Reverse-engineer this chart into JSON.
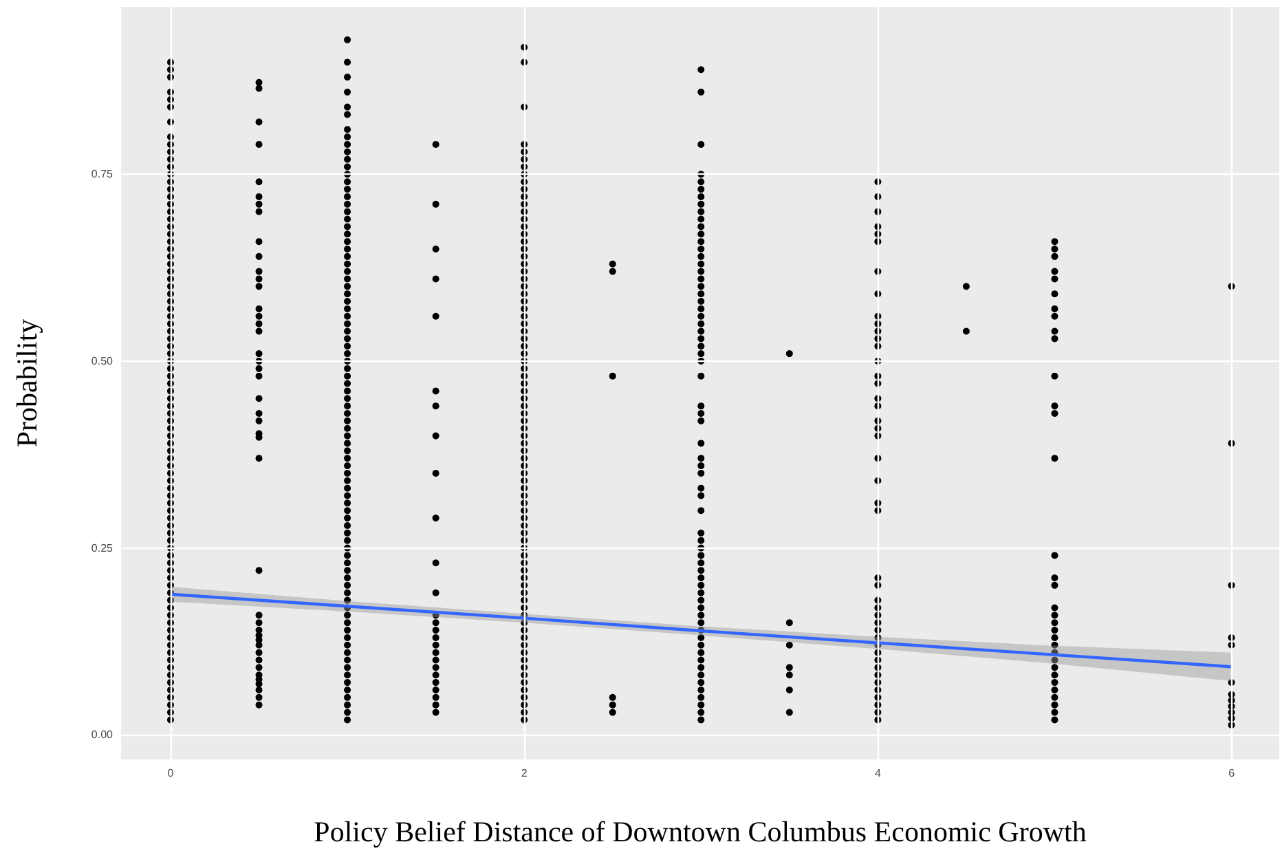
{
  "chart_data": {
    "type": "scatter",
    "xlabel": "Policy Belief Distance of Downtown Columbus Economic Growth",
    "ylabel": "Probability",
    "xlim": [
      -0.28,
      6.27
    ],
    "ylim": [
      -0.033,
      0.974
    ],
    "xticks": [
      0,
      2,
      4,
      6
    ],
    "yticks": [
      {
        "value": 0,
        "label": "0.00"
      },
      {
        "value": 0.25,
        "label": "0.25"
      },
      {
        "value": 0.5,
        "label": "0.50"
      },
      {
        "value": 0.75,
        "label": "0.75"
      }
    ],
    "grid": true,
    "marker": "circle",
    "series": [
      {
        "type": "scatter",
        "color": "#000000",
        "x": [
          0,
          0,
          0,
          0,
          0,
          0,
          0,
          0,
          0,
          0,
          0,
          0,
          0,
          0,
          0,
          0,
          0,
          0,
          0,
          0,
          0,
          0,
          0,
          0,
          0,
          0,
          0,
          0,
          0,
          0,
          0,
          0,
          0,
          0,
          0,
          0,
          0,
          0,
          0,
          0,
          0,
          0,
          0,
          0,
          0,
          0,
          0,
          0,
          0,
          0,
          0,
          0,
          0,
          0,
          0,
          0,
          0,
          0,
          0,
          0,
          0,
          0,
          0,
          0,
          0,
          0,
          0,
          0,
          0,
          0,
          0,
          0,
          0,
          0,
          0,
          0,
          0,
          0,
          0,
          0,
          0,
          0,
          0,
          0,
          0,
          0
        ],
        "values": [
          0.02,
          0.03,
          0.04,
          0.05,
          0.06,
          0.07,
          0.08,
          0.09,
          0.1,
          0.11,
          0.12,
          0.13,
          0.14,
          0.15,
          0.16,
          0.17,
          0.18,
          0.19,
          0.2,
          0.21,
          0.22,
          0.23,
          0.24,
          0.25,
          0.26,
          0.27,
          0.28,
          0.29,
          0.3,
          0.31,
          0.32,
          0.33,
          0.34,
          0.35,
          0.36,
          0.37,
          0.38,
          0.39,
          0.4,
          0.41,
          0.42,
          0.43,
          0.44,
          0.45,
          0.46,
          0.47,
          0.48,
          0.49,
          0.5,
          0.51,
          0.52,
          0.53,
          0.54,
          0.55,
          0.56,
          0.57,
          0.58,
          0.59,
          0.6,
          0.61,
          0.62,
          0.63,
          0.64,
          0.65,
          0.66,
          0.67,
          0.68,
          0.69,
          0.7,
          0.71,
          0.72,
          0.73,
          0.74,
          0.75,
          0.76,
          0.77,
          0.78,
          0.79,
          0.8,
          0.82,
          0.84,
          0.85,
          0.86,
          0.88,
          0.89,
          0.9
        ]
      },
      {
        "type": "scatter",
        "color": "#000000",
        "x": [
          0.5,
          0.5,
          0.5,
          0.5,
          0.5,
          0.5,
          0.5,
          0.5,
          0.5,
          0.5,
          0.5,
          0.5,
          0.5,
          0.5,
          0.5,
          0.5,
          0.5,
          0.5,
          0.5,
          0.5,
          0.5,
          0.5,
          0.5,
          0.5,
          0.5,
          0.5,
          0.5,
          0.5,
          0.5,
          0.5,
          0.5,
          0.5,
          0.5,
          0.5,
          0.5,
          0.5,
          0.5,
          0.5,
          0.5,
          0.5,
          0.5,
          0.5,
          0.5
        ],
        "values": [
          0.873,
          0.865,
          0.82,
          0.79,
          0.74,
          0.72,
          0.71,
          0.7,
          0.66,
          0.64,
          0.62,
          0.61,
          0.6,
          0.57,
          0.56,
          0.55,
          0.54,
          0.51,
          0.5,
          0.49,
          0.48,
          0.45,
          0.43,
          0.42,
          0.403,
          0.398,
          0.37,
          0.22,
          0.16,
          0.15,
          0.14,
          0.133,
          0.127,
          0.12,
          0.11,
          0.1,
          0.09,
          0.08,
          0.074,
          0.068,
          0.06,
          0.05,
          0.04
        ]
      },
      {
        "type": "scatter",
        "color": "#000000",
        "x": [
          1,
          1,
          1,
          1,
          1,
          1,
          1,
          1,
          1,
          1,
          1,
          1,
          1,
          1,
          1,
          1,
          1,
          1,
          1,
          1,
          1,
          1,
          1,
          1,
          1,
          1,
          1,
          1,
          1,
          1,
          1,
          1,
          1,
          1,
          1,
          1,
          1,
          1,
          1,
          1,
          1,
          1,
          1,
          1,
          1,
          1,
          1,
          1,
          1,
          1,
          1,
          1,
          1,
          1,
          1,
          1,
          1,
          1,
          1,
          1,
          1,
          1,
          1,
          1,
          1,
          1,
          1,
          1,
          1,
          1,
          1,
          1,
          1,
          1,
          1,
          1,
          1,
          1,
          1,
          1,
          1,
          1,
          1,
          1,
          1,
          1
        ],
        "values": [
          0.02,
          0.03,
          0.04,
          0.05,
          0.06,
          0.07,
          0.08,
          0.09,
          0.1,
          0.11,
          0.12,
          0.13,
          0.14,
          0.15,
          0.16,
          0.17,
          0.18,
          0.19,
          0.2,
          0.21,
          0.22,
          0.23,
          0.24,
          0.25,
          0.26,
          0.27,
          0.28,
          0.29,
          0.3,
          0.31,
          0.32,
          0.33,
          0.34,
          0.35,
          0.36,
          0.37,
          0.38,
          0.39,
          0.4,
          0.41,
          0.42,
          0.43,
          0.44,
          0.45,
          0.46,
          0.47,
          0.48,
          0.49,
          0.5,
          0.51,
          0.52,
          0.53,
          0.54,
          0.55,
          0.56,
          0.57,
          0.58,
          0.59,
          0.6,
          0.61,
          0.62,
          0.63,
          0.64,
          0.65,
          0.66,
          0.67,
          0.68,
          0.69,
          0.7,
          0.71,
          0.72,
          0.73,
          0.74,
          0.75,
          0.76,
          0.77,
          0.78,
          0.79,
          0.8,
          0.81,
          0.83,
          0.84,
          0.86,
          0.88,
          0.9,
          0.93
        ]
      },
      {
        "type": "scatter",
        "color": "#000000",
        "x": [
          1.5,
          1.5,
          1.5,
          1.5,
          1.5,
          1.5,
          1.5,
          1.5,
          1.5,
          1.5,
          1.5,
          1.5,
          1.5,
          1.5,
          1.5,
          1.5,
          1.5,
          1.5,
          1.5,
          1.5,
          1.5,
          1.5,
          1.5,
          1.5,
          1.5,
          1.5
        ],
        "values": [
          0.03,
          0.04,
          0.05,
          0.06,
          0.07,
          0.08,
          0.09,
          0.1,
          0.11,
          0.12,
          0.13,
          0.14,
          0.15,
          0.16,
          0.19,
          0.23,
          0.29,
          0.35,
          0.4,
          0.44,
          0.46,
          0.56,
          0.61,
          0.65,
          0.71,
          0.79
        ]
      },
      {
        "type": "scatter",
        "color": "#000000",
        "x": [
          2,
          2,
          2,
          2,
          2,
          2,
          2,
          2,
          2,
          2,
          2,
          2,
          2,
          2,
          2,
          2,
          2,
          2,
          2,
          2,
          2,
          2,
          2,
          2,
          2,
          2,
          2,
          2,
          2,
          2,
          2,
          2,
          2,
          2,
          2,
          2,
          2,
          2,
          2,
          2,
          2,
          2,
          2,
          2,
          2,
          2,
          2,
          2,
          2,
          2,
          2,
          2,
          2,
          2,
          2,
          2,
          2,
          2,
          2,
          2,
          2,
          2,
          2,
          2,
          2,
          2,
          2,
          2,
          2,
          2,
          2,
          2,
          2,
          2,
          2,
          2,
          2,
          2,
          2,
          2,
          2
        ],
        "values": [
          0.02,
          0.03,
          0.04,
          0.05,
          0.06,
          0.07,
          0.08,
          0.09,
          0.1,
          0.11,
          0.12,
          0.13,
          0.14,
          0.15,
          0.16,
          0.17,
          0.18,
          0.19,
          0.2,
          0.21,
          0.22,
          0.23,
          0.24,
          0.25,
          0.26,
          0.27,
          0.28,
          0.29,
          0.3,
          0.31,
          0.32,
          0.33,
          0.34,
          0.35,
          0.36,
          0.37,
          0.38,
          0.39,
          0.4,
          0.41,
          0.42,
          0.43,
          0.44,
          0.45,
          0.46,
          0.47,
          0.48,
          0.49,
          0.5,
          0.51,
          0.52,
          0.53,
          0.54,
          0.55,
          0.56,
          0.57,
          0.58,
          0.59,
          0.6,
          0.61,
          0.62,
          0.63,
          0.64,
          0.65,
          0.66,
          0.67,
          0.68,
          0.69,
          0.7,
          0.71,
          0.72,
          0.73,
          0.74,
          0.75,
          0.76,
          0.77,
          0.78,
          0.79,
          0.84,
          0.9,
          0.92
        ]
      },
      {
        "type": "scatter",
        "color": "#000000",
        "x": [
          2.5,
          2.5,
          2.5,
          2.5,
          2.5,
          2.5
        ],
        "values": [
          0.63,
          0.62,
          0.48,
          0.05,
          0.04,
          0.03
        ]
      },
      {
        "type": "scatter",
        "color": "#000000",
        "x": [
          3,
          3,
          3,
          3,
          3,
          3,
          3,
          3,
          3,
          3,
          3,
          3,
          3,
          3,
          3,
          3,
          3,
          3,
          3,
          3,
          3,
          3,
          3,
          3,
          3,
          3,
          3,
          3,
          3,
          3,
          3,
          3,
          3,
          3,
          3,
          3,
          3,
          3,
          3,
          3,
          3,
          3,
          3,
          3,
          3,
          3,
          3,
          3,
          3,
          3,
          3,
          3,
          3,
          3,
          3,
          3,
          3,
          3,
          3,
          3,
          3,
          3,
          3,
          3,
          3,
          3
        ],
        "values": [
          0.02,
          0.03,
          0.04,
          0.05,
          0.06,
          0.07,
          0.08,
          0.09,
          0.1,
          0.11,
          0.12,
          0.13,
          0.14,
          0.15,
          0.16,
          0.17,
          0.18,
          0.19,
          0.2,
          0.21,
          0.22,
          0.23,
          0.24,
          0.25,
          0.26,
          0.27,
          0.3,
          0.32,
          0.33,
          0.35,
          0.36,
          0.37,
          0.39,
          0.42,
          0.43,
          0.44,
          0.48,
          0.5,
          0.51,
          0.52,
          0.53,
          0.54,
          0.55,
          0.56,
          0.57,
          0.58,
          0.59,
          0.6,
          0.61,
          0.62,
          0.63,
          0.64,
          0.65,
          0.66,
          0.67,
          0.68,
          0.69,
          0.7,
          0.71,
          0.72,
          0.73,
          0.74,
          0.75,
          0.79,
          0.86,
          0.89
        ]
      },
      {
        "type": "scatter",
        "color": "#000000",
        "x": [
          3.5,
          3.5,
          3.5,
          3.5,
          3.5,
          3.5,
          3.5
        ],
        "values": [
          0.51,
          0.15,
          0.12,
          0.09,
          0.08,
          0.06,
          0.03
        ]
      },
      {
        "type": "scatter",
        "color": "#000000",
        "x": [
          4,
          4,
          4,
          4,
          4,
          4,
          4,
          4,
          4,
          4,
          4,
          4,
          4,
          4,
          4,
          4,
          4,
          4,
          4,
          4,
          4,
          4,
          4,
          4,
          4,
          4,
          4,
          4,
          4,
          4,
          4,
          4,
          4,
          4,
          4,
          4,
          4,
          4,
          4,
          4,
          4,
          4,
          4,
          4
        ],
        "values": [
          0.02,
          0.03,
          0.04,
          0.05,
          0.06,
          0.07,
          0.08,
          0.09,
          0.1,
          0.11,
          0.12,
          0.13,
          0.14,
          0.15,
          0.16,
          0.17,
          0.18,
          0.2,
          0.21,
          0.3,
          0.31,
          0.34,
          0.37,
          0.4,
          0.41,
          0.42,
          0.44,
          0.45,
          0.47,
          0.48,
          0.5,
          0.52,
          0.53,
          0.54,
          0.55,
          0.56,
          0.59,
          0.62,
          0.66,
          0.67,
          0.68,
          0.7,
          0.72,
          0.74
        ]
      },
      {
        "type": "scatter",
        "color": "#000000",
        "x": [
          4.5,
          4.5
        ],
        "values": [
          0.54,
          0.6
        ]
      },
      {
        "type": "scatter",
        "color": "#000000",
        "x": [
          5,
          5,
          5,
          5,
          5,
          5,
          5,
          5,
          5,
          5,
          5,
          5,
          5,
          5,
          5,
          5,
          5,
          5,
          5,
          5,
          5,
          5,
          5,
          5,
          5,
          5,
          5,
          5,
          5,
          5,
          5,
          5,
          5
        ],
        "values": [
          0.02,
          0.03,
          0.04,
          0.05,
          0.06,
          0.07,
          0.08,
          0.09,
          0.1,
          0.11,
          0.12,
          0.13,
          0.14,
          0.15,
          0.16,
          0.17,
          0.2,
          0.21,
          0.24,
          0.37,
          0.43,
          0.44,
          0.48,
          0.53,
          0.54,
          0.56,
          0.57,
          0.59,
          0.61,
          0.62,
          0.64,
          0.65,
          0.66
        ]
      },
      {
        "type": "scatter",
        "color": "#000000",
        "x": [
          6,
          6,
          6,
          6,
          6,
          6,
          6,
          6,
          6,
          6,
          6,
          6
        ],
        "values": [
          0.6,
          0.39,
          0.2,
          0.13,
          0.12,
          0.07,
          0.054,
          0.046,
          0.038,
          0.03,
          0.022,
          0.013
        ]
      },
      {
        "type": "line",
        "color": "#3366ff",
        "marker": "none",
        "x": [
          0,
          1,
          2,
          3,
          4,
          5,
          6
        ],
        "values": [
          0.188,
          0.172,
          0.156,
          0.139,
          0.123,
          0.107,
          0.091
        ],
        "lower": [
          0.178,
          0.165,
          0.15,
          0.133,
          0.115,
          0.095,
          0.072
        ],
        "upper": [
          0.198,
          0.179,
          0.162,
          0.145,
          0.131,
          0.119,
          0.11
        ]
      }
    ]
  }
}
